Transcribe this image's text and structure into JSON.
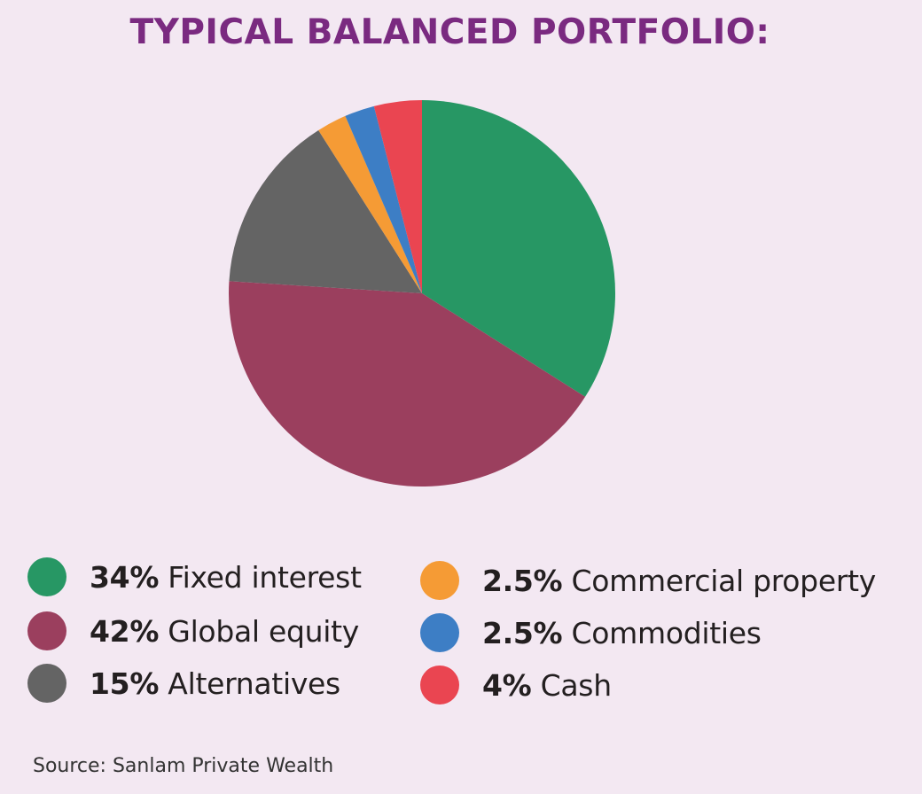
{
  "chart_data": {
    "type": "pie",
    "title": "TYPICAL BALANCED PORTFOLIO:",
    "slices": [
      {
        "label": "Fixed interest",
        "percent_label": "34%",
        "value": 34,
        "color": "#279764"
      },
      {
        "label": "Global equity",
        "percent_label": "42%",
        "value": 42,
        "color": "#9b3f5e"
      },
      {
        "label": "Alternatives",
        "percent_label": "15%",
        "value": 15,
        "color": "#646464"
      },
      {
        "label": "Commercial property",
        "percent_label": "2.5%",
        "value": 2.5,
        "color": "#f59b35"
      },
      {
        "label": "Commodities",
        "percent_label": "2.5%",
        "value": 2.5,
        "color": "#3d7ec5"
      },
      {
        "label": "Cash",
        "percent_label": "4%",
        "value": 4,
        "color": "#ea4551"
      }
    ],
    "source": "Source: Sanlam Private Wealth"
  }
}
